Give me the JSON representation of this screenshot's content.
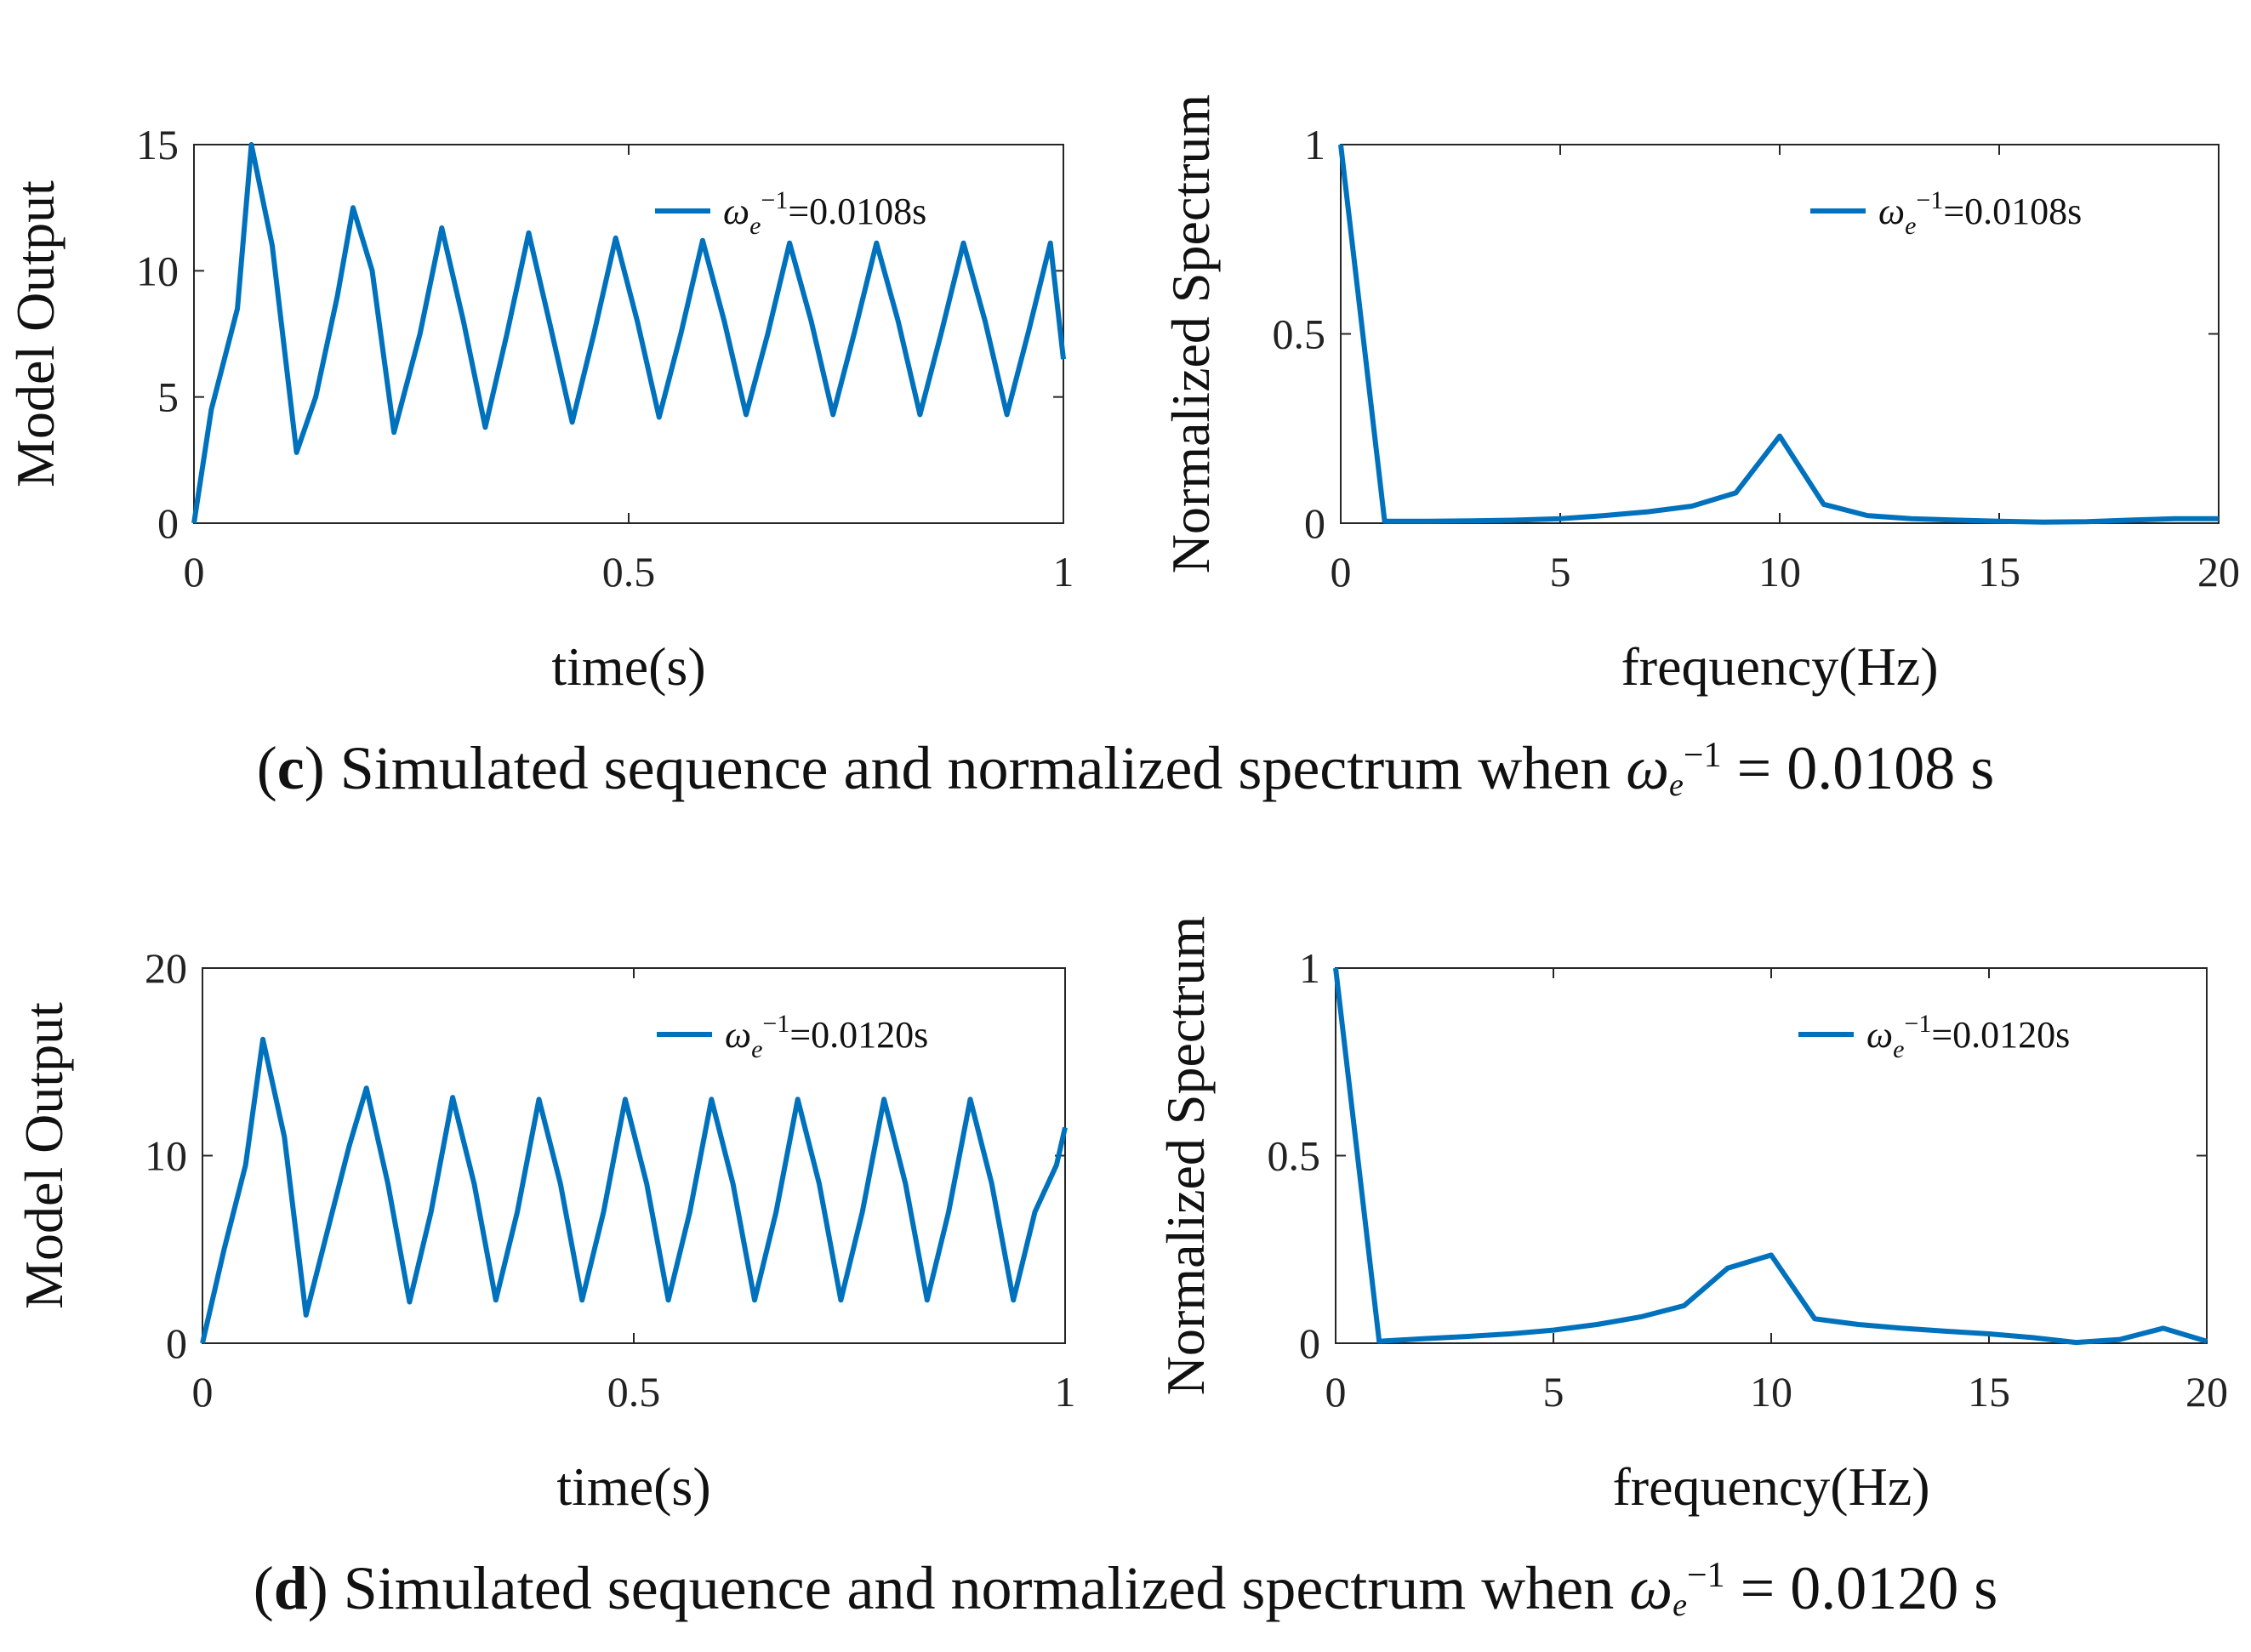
{
  "colors": {
    "series": "#0072BD",
    "axis": "#262626"
  },
  "chart_data": [
    {
      "id": "c-time",
      "type": "line",
      "xlabel": "time(s)",
      "ylabel": "Model Output",
      "xlim": [
        0,
        1
      ],
      "ylim": [
        0,
        15
      ],
      "xticks": [
        "0",
        "0.5",
        "1"
      ],
      "yticks": [
        "0",
        "5",
        "10",
        "15"
      ],
      "legend": {
        "symbol": "ω",
        "sub": "e",
        "sup": "−1",
        "value": "=0.0108s",
        "location": "top-right"
      },
      "series": [
        {
          "name": "ωe−1=0.0108s",
          "x": [
            0,
            0.02,
            0.05,
            0.066,
            0.09,
            0.118,
            0.14,
            0.165,
            0.183,
            0.205,
            0.23,
            0.26,
            0.285,
            0.31,
            0.335,
            0.36,
            0.385,
            0.41,
            0.435,
            0.46,
            0.485,
            0.51,
            0.535,
            0.56,
            0.585,
            0.61,
            0.635,
            0.66,
            0.685,
            0.71,
            0.735,
            0.76,
            0.785,
            0.81,
            0.835,
            0.86,
            0.885,
            0.91,
            0.935,
            0.96,
            0.985,
            1.0
          ],
          "y": [
            0,
            4.5,
            8.5,
            15,
            11,
            2.8,
            5,
            9,
            12.5,
            10,
            3.6,
            7.5,
            11.7,
            8,
            3.8,
            7.5,
            11.5,
            7.8,
            4.0,
            7.5,
            11.3,
            8,
            4.2,
            7.5,
            11.2,
            8,
            4.3,
            7.5,
            11.1,
            8,
            4.3,
            7.6,
            11.1,
            8,
            4.3,
            7.6,
            11.1,
            8,
            4.3,
            7.6,
            11.1,
            6.5
          ]
        }
      ]
    },
    {
      "id": "c-freq",
      "type": "line",
      "xlabel": "frequency(Hz)",
      "ylabel": "Normalized Spectrum",
      "xlim": [
        0,
        20
      ],
      "ylim": [
        0,
        1
      ],
      "xticks": [
        "0",
        "5",
        "10",
        "15",
        "20"
      ],
      "yticks": [
        "0",
        "0.5",
        "1"
      ],
      "legend": {
        "symbol": "ω",
        "sub": "e",
        "sup": "−1",
        "value": "=0.0108s",
        "location": "top-right"
      },
      "series": [
        {
          "name": "ωe−1=0.0108s",
          "x": [
            0,
            1,
            2,
            3,
            4,
            5,
            6,
            7,
            8,
            9,
            10,
            11,
            12,
            13,
            14,
            15,
            16,
            17,
            18,
            19,
            20
          ],
          "y": [
            1.0,
            0.005,
            0.005,
            0.006,
            0.008,
            0.012,
            0.02,
            0.03,
            0.045,
            0.08,
            0.23,
            0.05,
            0.02,
            0.012,
            0.008,
            0.005,
            0.003,
            0.004,
            0.008,
            0.012,
            0.012
          ]
        }
      ]
    },
    {
      "id": "d-time",
      "type": "line",
      "xlabel": "time(s)",
      "ylabel": "Model Output",
      "xlim": [
        0,
        1
      ],
      "ylim": [
        0,
        20
      ],
      "xticks": [
        "0",
        "0.5",
        "1"
      ],
      "yticks": [
        "0",
        "10",
        "20"
      ],
      "legend": {
        "symbol": "ω",
        "sub": "e",
        "sup": "−1",
        "value": "=0.0120s",
        "location": "top-right"
      },
      "series": [
        {
          "name": "ωe−1=0.0120s",
          "x": [
            0,
            0.025,
            0.05,
            0.07,
            0.095,
            0.12,
            0.145,
            0.17,
            0.19,
            0.215,
            0.24,
            0.265,
            0.29,
            0.315,
            0.34,
            0.365,
            0.39,
            0.415,
            0.44,
            0.465,
            0.49,
            0.515,
            0.54,
            0.565,
            0.59,
            0.615,
            0.64,
            0.665,
            0.69,
            0.715,
            0.74,
            0.765,
            0.79,
            0.815,
            0.84,
            0.865,
            0.89,
            0.915,
            0.94,
            0.965,
            0.99,
            1.0
          ],
          "y": [
            0,
            5,
            9.5,
            16.2,
            11,
            1.5,
            6,
            10.5,
            13.6,
            8.5,
            2.2,
            7,
            13.1,
            8.5,
            2.3,
            7,
            13.0,
            8.5,
            2.3,
            7,
            13.0,
            8.5,
            2.3,
            7,
            13.0,
            8.5,
            2.3,
            7,
            13.0,
            8.5,
            2.3,
            7,
            13.0,
            8.5,
            2.3,
            7,
            13.0,
            8.5,
            2.3,
            7,
            9.5,
            11.5
          ]
        }
      ]
    },
    {
      "id": "d-freq",
      "type": "line",
      "xlabel": "frequency(Hz)",
      "ylabel": "Normalized Spectrum",
      "xlim": [
        0,
        20
      ],
      "ylim": [
        0,
        1
      ],
      "xticks": [
        "0",
        "5",
        "10",
        "15",
        "20"
      ],
      "yticks": [
        "0",
        "0.5",
        "1"
      ],
      "legend": {
        "symbol": "ω",
        "sub": "e",
        "sup": "−1",
        "value": "=0.0120s",
        "location": "top-right"
      },
      "series": [
        {
          "name": "ωe−1=0.0120s",
          "x": [
            0,
            1,
            2,
            3,
            4,
            5,
            6,
            7,
            8,
            9,
            10,
            11,
            12,
            13,
            14,
            15,
            16,
            17,
            18,
            19,
            20
          ],
          "y": [
            1.0,
            0.005,
            0.012,
            0.018,
            0.025,
            0.035,
            0.05,
            0.07,
            0.1,
            0.2,
            0.235,
            0.065,
            0.05,
            0.04,
            0.032,
            0.025,
            0.015,
            0.002,
            0.01,
            0.04,
            0.005
          ]
        }
      ]
    }
  ],
  "captions": [
    {
      "letter": "c",
      "text": " Simulated sequence and normalized spectrum when ",
      "symbol": "ω",
      "sub": "e",
      "sup": "−1",
      "value": " = 0.0108 s"
    },
    {
      "letter": "d",
      "text": " Simulated sequence and normalized spectrum when ",
      "symbol": "ω",
      "sub": "e",
      "sup": "−1",
      "value": " = 0.0120 s"
    }
  ]
}
